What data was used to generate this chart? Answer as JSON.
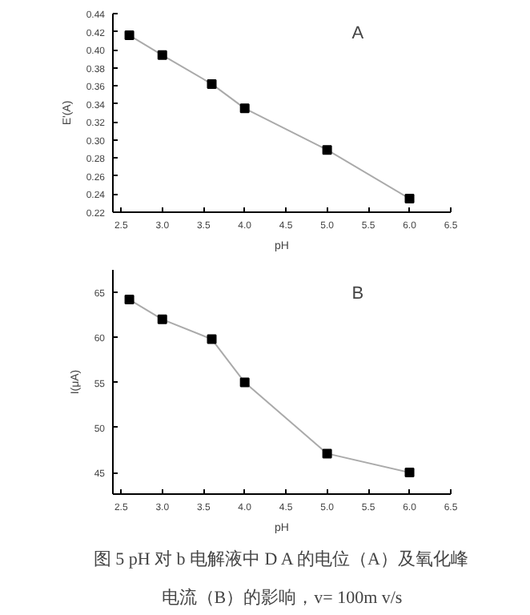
{
  "chart_data": [
    {
      "type": "line",
      "xlabel": "pH",
      "ylabel": "E'(A)",
      "x": [
        2.6,
        3.0,
        3.6,
        4.0,
        5.0,
        6.0
      ],
      "series": [
        {
          "color": "#000000",
          "values": [
            0.416,
            0.394,
            0.362,
            0.335,
            0.289,
            0.235
          ]
        }
      ],
      "xlim": [
        2.4,
        6.5
      ],
      "xticks": [
        {
          "value": 2.5,
          "label": "2.5"
        },
        {
          "value": 3.0,
          "label": "3.0"
        },
        {
          "value": 3.5,
          "label": "3.5"
        },
        {
          "value": 4.0,
          "label": "4.0"
        },
        {
          "value": 4.5,
          "label": "4.5"
        },
        {
          "value": 5.0,
          "label": "5.0"
        },
        {
          "value": 5.5,
          "label": "5.5"
        },
        {
          "value": 6.0,
          "label": "6.0"
        },
        {
          "value": 6.5,
          "label": "6.5"
        }
      ],
      "ylim": [
        0.22,
        0.44
      ],
      "yticks": [
        {
          "value": 0.22,
          "label": "0.22"
        },
        {
          "value": 0.24,
          "label": "0.24"
        },
        {
          "value": 0.26,
          "label": "0.26"
        },
        {
          "value": 0.28,
          "label": "0.28"
        },
        {
          "value": 0.3,
          "label": "0.30"
        },
        {
          "value": 0.32,
          "label": "0.32"
        },
        {
          "value": 0.34,
          "label": "0.34"
        },
        {
          "value": 0.36,
          "label": "0.36"
        },
        {
          "value": 0.38,
          "label": "0.38"
        },
        {
          "value": 0.4,
          "label": "0.40"
        },
        {
          "value": 0.42,
          "label": "0.42"
        },
        {
          "value": 0.44,
          "label": "0.44"
        }
      ],
      "marker": "square",
      "grid": false,
      "annotations": [
        "A"
      ]
    },
    {
      "type": "line",
      "xlabel": "pH",
      "ylabel": "I(μA)",
      "x": [
        2.6,
        3.0,
        3.6,
        4.0,
        5.0,
        6.0
      ],
      "series": [
        {
          "color": "#000000",
          "values": [
            64.2,
            62.0,
            59.8,
            55.0,
            47.1,
            45.0
          ]
        }
      ],
      "xlim": [
        2.4,
        6.5
      ],
      "xticks": [
        {
          "value": 2.5,
          "label": "2.5"
        },
        {
          "value": 3.0,
          "label": "3.0"
        },
        {
          "value": 3.5,
          "label": "3.5"
        },
        {
          "value": 4.0,
          "label": "4.0"
        },
        {
          "value": 4.5,
          "label": "4.5"
        },
        {
          "value": 5.0,
          "label": "5.0"
        },
        {
          "value": 5.5,
          "label": "5.5"
        },
        {
          "value": 6.0,
          "label": "6.0"
        },
        {
          "value": 6.5,
          "label": "6.5"
        }
      ],
      "ylim": [
        42.6,
        67.5
      ],
      "yticks": [
        45,
        50,
        55,
        60,
        65
      ],
      "marker": "square",
      "grid": false,
      "annotations": [
        "B",
        "图 5 pH 对 b 电解液中 D A 的电位（A）及氧化峰",
        "电流（B）的影响，v= 100m v/s"
      ]
    }
  ]
}
